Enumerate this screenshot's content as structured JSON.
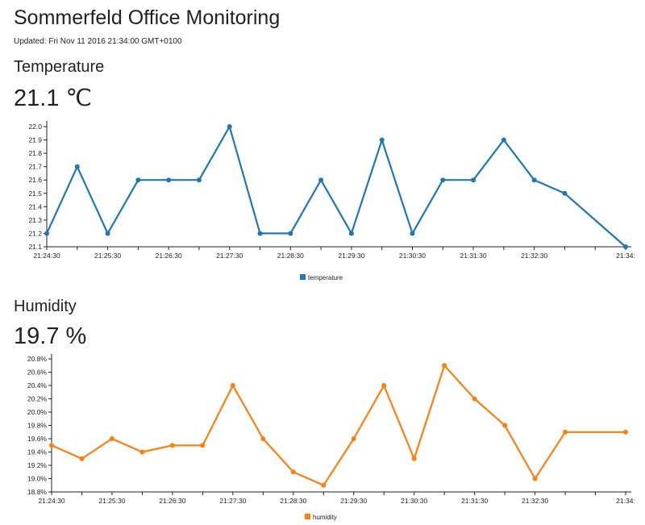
{
  "header": {
    "title": "Sommerfeld Office Monitoring",
    "updated": "Updated: Fri Nov 11 2016 21:34:00 GMT+0100"
  },
  "temperature": {
    "heading": "Temperature",
    "current_value": "21.1",
    "current_unit": "℃"
  },
  "humidity": {
    "heading": "Humidity",
    "current_value": "19.7",
    "current_unit": "%"
  },
  "colors": {
    "temperature": "#1f77b4",
    "humidity": "#ff7f0e"
  },
  "chart_data": [
    {
      "type": "line",
      "x": [
        "21:24:30",
        "21:25:00",
        "21:25:30",
        "21:26:00",
        "21:26:30",
        "21:27:00",
        "21:27:30",
        "21:28:00",
        "21:28:30",
        "21:29:00",
        "21:29:30",
        "21:30:00",
        "21:30:30",
        "21:31:00",
        "21:31:30",
        "21:32:00",
        "21:32:30",
        "21:33:00",
        "21:34:00"
      ],
      "x_tick_labels": [
        "21:24:30",
        "21:25:30",
        "21:26:30",
        "21:27:30",
        "21:28:30",
        "21:29:30",
        "21:30:30",
        "21:31:30",
        "21:32:30",
        "21:34:"
      ],
      "series": [
        {
          "name": "temperature",
          "values": [
            21.2,
            21.7,
            21.2,
            21.6,
            21.6,
            21.6,
            22.0,
            21.2,
            21.2,
            21.6,
            21.2,
            21.9,
            21.2,
            21.6,
            21.6,
            21.9,
            21.6,
            21.5,
            21.1
          ]
        }
      ],
      "y_ticks": [
        "21.1",
        "21.2",
        "21.3",
        "21.4",
        "21.5",
        "21.6",
        "21.7",
        "21.8",
        "21.9",
        "22.0"
      ],
      "ylim": [
        21.1,
        22.0
      ],
      "grid": false,
      "legend_position": "bottom-center"
    },
    {
      "type": "line",
      "x": [
        "21:24:30",
        "21:25:00",
        "21:25:30",
        "21:26:00",
        "21:26:30",
        "21:27:00",
        "21:27:30",
        "21:28:00",
        "21:28:30",
        "21:29:00",
        "21:29:30",
        "21:30:00",
        "21:30:30",
        "21:31:00",
        "21:31:30",
        "21:32:00",
        "21:32:30",
        "21:33:00",
        "21:34:00"
      ],
      "x_tick_labels": [
        "21:24:30",
        "21:25:30",
        "21:26:30",
        "21:27:30",
        "21:28:30",
        "21:29:30",
        "21:30:30",
        "21:31:30",
        "21:32:30",
        "21:34:"
      ],
      "series": [
        {
          "name": "humidity",
          "values": [
            19.5,
            19.3,
            19.6,
            19.4,
            19.5,
            19.5,
            20.4,
            19.6,
            19.1,
            18.9,
            19.6,
            20.4,
            19.3,
            20.7,
            20.2,
            19.8,
            19.0,
            19.7,
            19.7
          ]
        }
      ],
      "y_ticks": [
        "18.8%",
        "19.0%",
        "19.2%",
        "19.4%",
        "19.6%",
        "19.8%",
        "20.0%",
        "20.2%",
        "20.4%",
        "20.6%",
        "20.8%"
      ],
      "ylim": [
        18.8,
        20.8
      ],
      "grid": false,
      "legend_position": "bottom-center"
    }
  ]
}
